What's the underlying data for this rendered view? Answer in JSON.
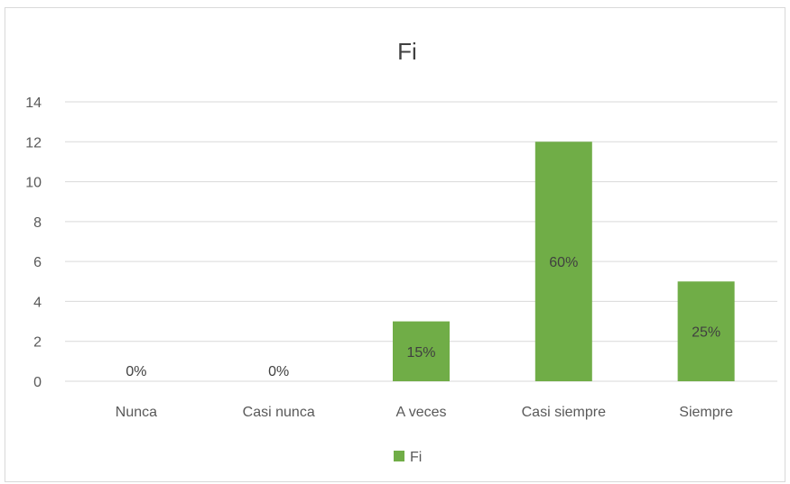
{
  "chart_data": {
    "type": "bar",
    "title": "Fi",
    "categories": [
      "Nunca",
      "Casi nunca",
      "A veces",
      "Casi siempre",
      "Siempre"
    ],
    "series": [
      {
        "name": "Fi",
        "values": [
          0,
          0,
          3,
          12,
          5
        ],
        "color": "#70ad47"
      }
    ],
    "data_labels": [
      "0%",
      "0%",
      "15%",
      "60%",
      "25%"
    ],
    "ylim": [
      0,
      14
    ],
    "yticks": [
      0,
      2,
      4,
      6,
      8,
      10,
      12,
      14
    ],
    "grid": true,
    "legend_position": "bottom"
  }
}
